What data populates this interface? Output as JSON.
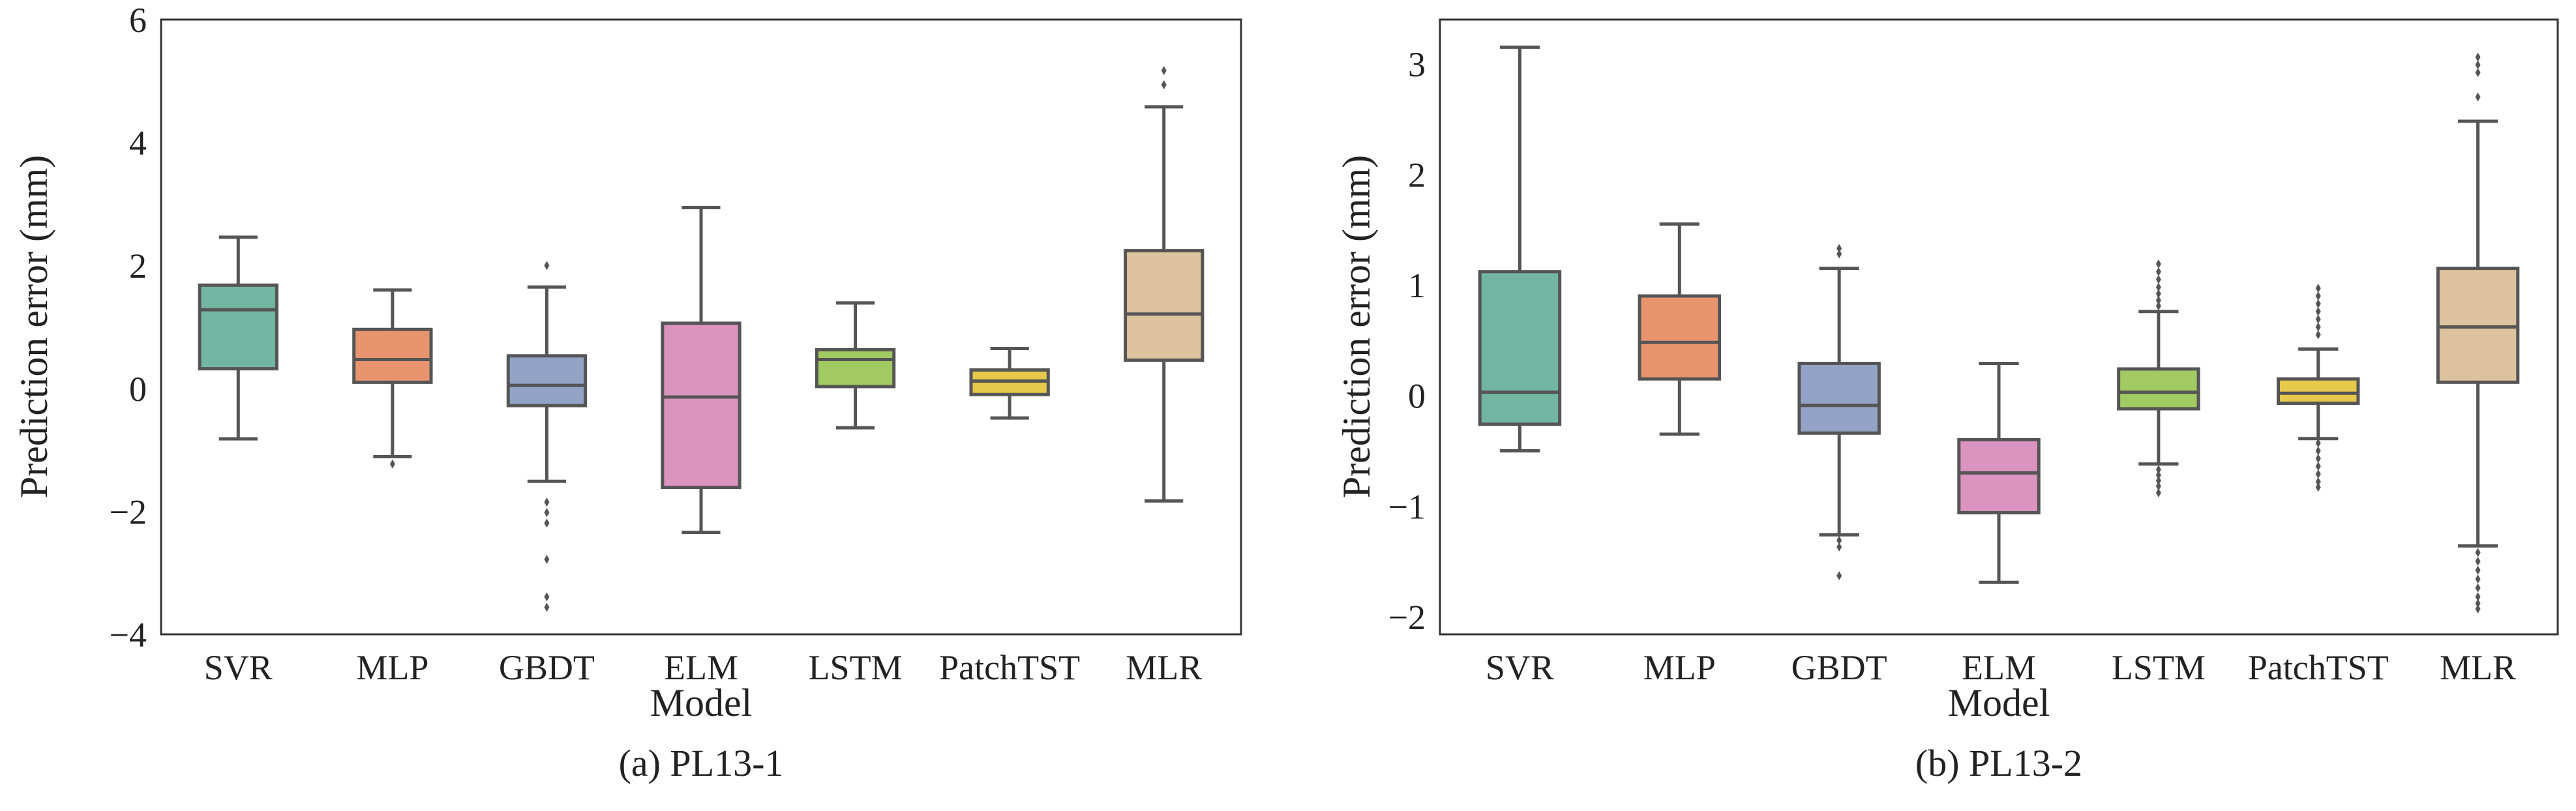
{
  "chart_data": [
    {
      "type": "box",
      "caption": "(a) PL13-1",
      "xlabel": "Model",
      "ylabel": "Prediction error (mm)",
      "ylim": [
        -4,
        6
      ],
      "yticks": [
        -4,
        -2,
        0,
        2,
        4,
        6
      ],
      "ytick_labels": [
        "−4",
        "−2",
        "0",
        "2",
        "4",
        "6"
      ],
      "grid": false,
      "categories": [
        "SVR",
        "MLP",
        "GBDT",
        "ELM",
        "LSTM",
        "PatchTST",
        "MLR"
      ],
      "colors": [
        "#72b6a1",
        "#e8956f",
        "#93a3c6",
        "#db93c0",
        "#a2ca62",
        "#e6c84a",
        "#dcc39e"
      ],
      "boxes": [
        {
          "whislo": -0.82,
          "q1": 0.32,
          "med": 1.28,
          "q3": 1.68,
          "whishi": 2.46,
          "fliers": []
        },
        {
          "whislo": -1.11,
          "q1": 0.1,
          "med": 0.47,
          "q3": 0.96,
          "whishi": 1.6,
          "fliers": [
            -1.23
          ]
        },
        {
          "whislo": -1.51,
          "q1": -0.28,
          "med": 0.05,
          "q3": 0.53,
          "whishi": 1.65,
          "fliers": [
            2.0,
            -1.85,
            -2.02,
            -2.19,
            -2.78,
            -3.39,
            -3.56
          ]
        },
        {
          "whislo": -2.34,
          "q1": -1.61,
          "med": -0.14,
          "q3": 1.06,
          "whishi": 2.94,
          "fliers": []
        },
        {
          "whislo": -0.64,
          "q1": 0.03,
          "med": 0.47,
          "q3": 0.63,
          "whishi": 1.39,
          "fliers": []
        },
        {
          "whislo": -0.48,
          "q1": -0.1,
          "med": 0.12,
          "q3": 0.3,
          "whishi": 0.65,
          "fliers": []
        },
        {
          "whislo": -1.83,
          "q1": 0.46,
          "med": 1.21,
          "q3": 2.24,
          "whishi": 4.58,
          "fliers": [
            5.17,
            4.94
          ]
        }
      ]
    },
    {
      "type": "box",
      "caption": "(b) PL13-2",
      "xlabel": "Model",
      "ylabel": "Prediction error (mm)",
      "ylim": [
        -2.16,
        3.4
      ],
      "yticks": [
        -2,
        -1,
        0,
        1,
        2,
        3
      ],
      "ytick_labels": [
        "−2",
        "−1",
        "0",
        "1",
        "2",
        "3"
      ],
      "grid": false,
      "categories": [
        "SVR",
        "MLP",
        "GBDT",
        "ELM",
        "LSTM",
        "PatchTST",
        "MLR"
      ],
      "colors": [
        "#72b6a1",
        "#e8956f",
        "#93a3c6",
        "#db93c0",
        "#a2ca62",
        "#e6c84a",
        "#dcc39e"
      ],
      "boxes": [
        {
          "whislo": -0.5,
          "q1": -0.26,
          "med": 0.03,
          "q3": 1.12,
          "whishi": 3.15,
          "fliers": []
        },
        {
          "whislo": -0.35,
          "q1": 0.15,
          "med": 0.48,
          "q3": 0.9,
          "whishi": 1.55,
          "fliers": []
        },
        {
          "whislo": -1.26,
          "q1": -0.34,
          "med": -0.09,
          "q3": 0.29,
          "whishi": 1.15,
          "fliers": [
            1.33,
            1.28,
            -1.31,
            -1.37,
            -1.63
          ]
        },
        {
          "whislo": -1.69,
          "q1": -1.06,
          "med": -0.7,
          "q3": -0.4,
          "whishi": 0.29,
          "fliers": []
        },
        {
          "whislo": -0.62,
          "q1": -0.12,
          "med": 0.03,
          "q3": 0.24,
          "whishi": 0.76,
          "fliers": [
            1.19,
            1.12,
            1.05,
            0.98,
            0.92,
            0.86,
            0.81,
            -0.67,
            -0.72,
            -0.77,
            -0.82,
            -0.88
          ]
        },
        {
          "whislo": -0.39,
          "q1": -0.07,
          "med": 0.02,
          "q3": 0.15,
          "whishi": 0.42,
          "fliers": [
            0.97,
            0.9,
            0.83,
            0.76,
            0.69,
            0.62,
            0.55,
            -0.43,
            -0.5,
            -0.57,
            -0.64,
            -0.71,
            -0.78,
            -0.83
          ]
        },
        {
          "whislo": -1.36,
          "q1": 0.12,
          "med": 0.62,
          "q3": 1.15,
          "whishi": 2.48,
          "fliers": [
            3.06,
            2.99,
            2.92,
            2.7,
            -1.42,
            -1.5,
            -1.58,
            -1.66,
            -1.74,
            -1.82,
            -1.88,
            -1.93
          ]
        }
      ]
    }
  ]
}
